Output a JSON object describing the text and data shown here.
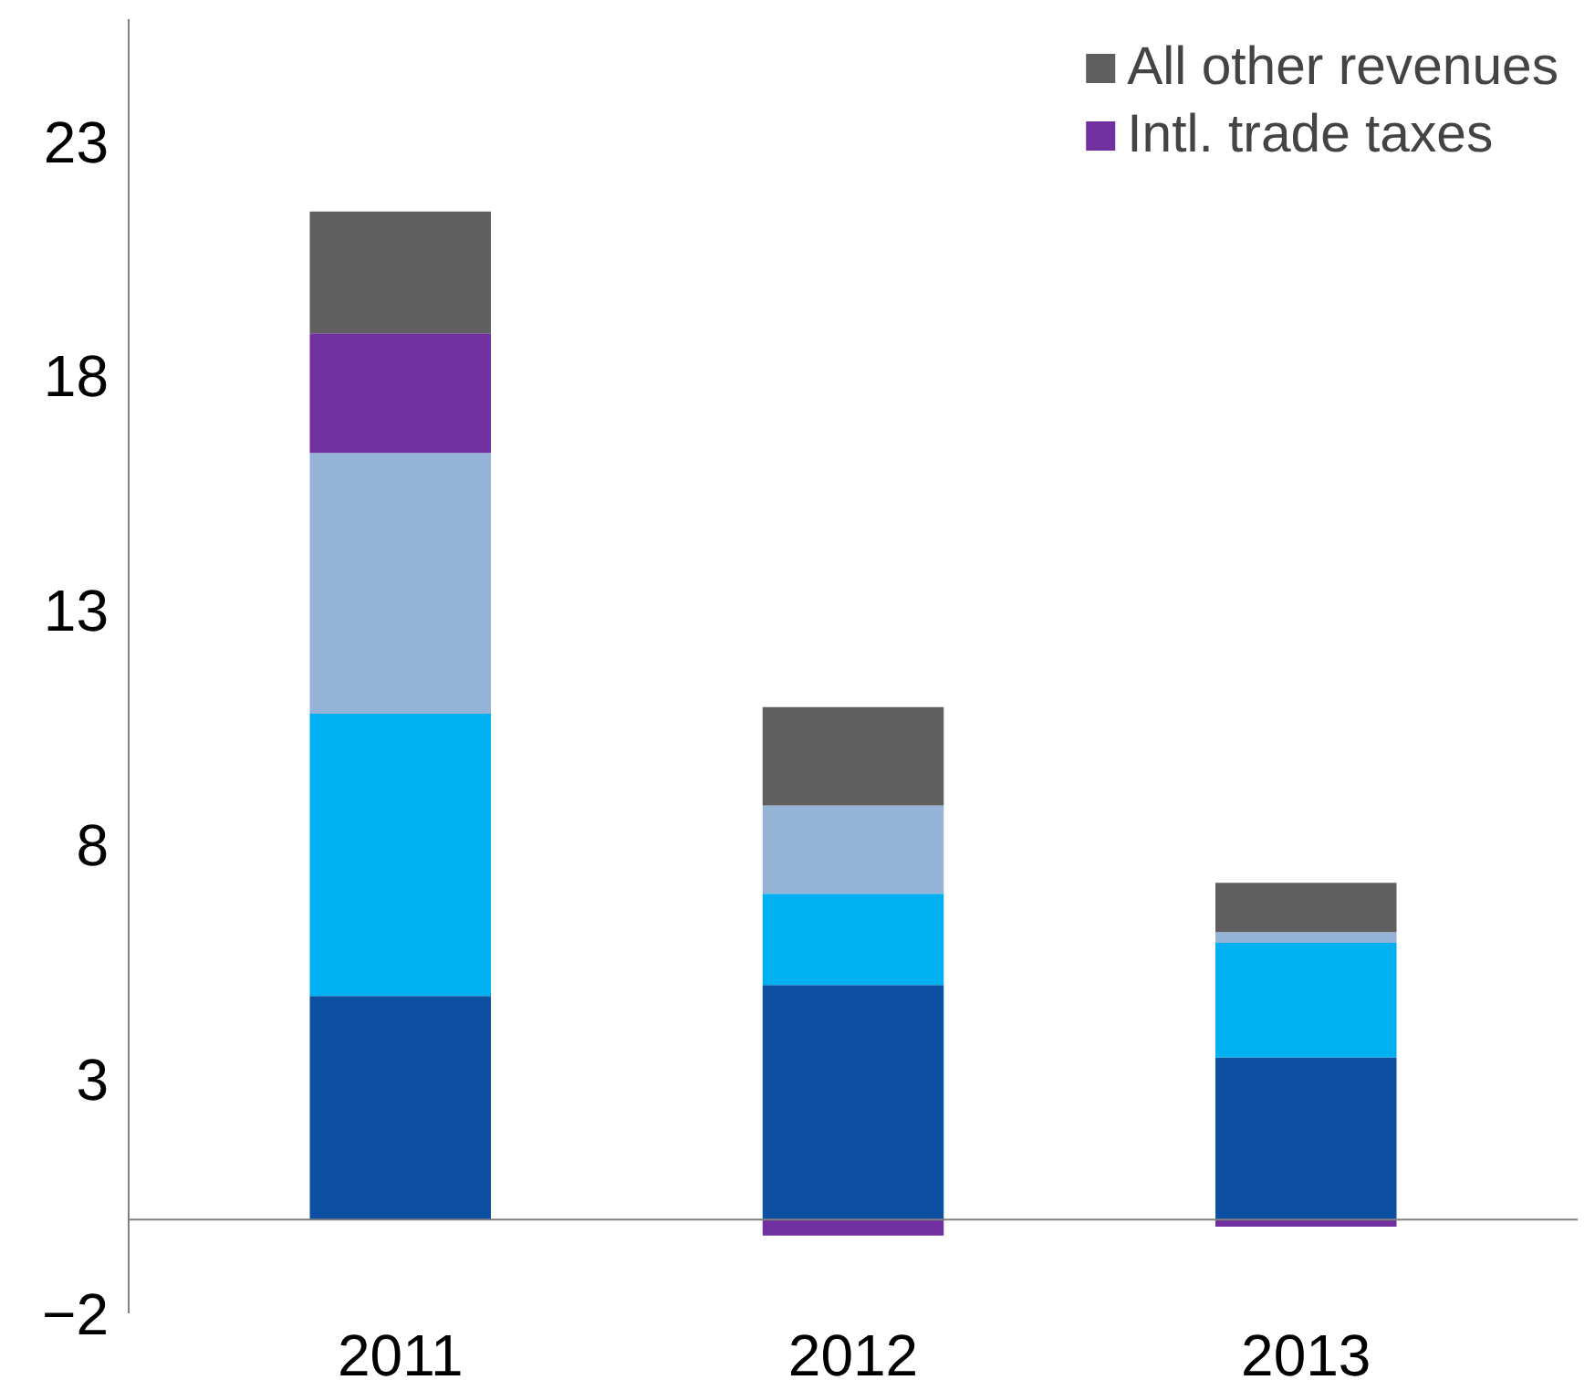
{
  "chart_data": {
    "type": "bar",
    "stacked": true,
    "categories": [
      "2011",
      "2012",
      "2013"
    ],
    "series": [
      {
        "color": "#0d4fa0",
        "values": [
          4.77,
          5.0,
          3.46
        ]
      },
      {
        "color": "#00b0f0",
        "values": [
          6.02,
          1.95,
          2.44
        ]
      },
      {
        "color": "#95b3d7",
        "values": [
          5.56,
          1.88,
          0.23
        ]
      },
      {
        "name": "Intl. trade taxes",
        "color": "#7030a0",
        "values": [
          2.55,
          -0.34,
          -0.15
        ]
      },
      {
        "name": "All other revenues",
        "color": "#5f5f5f",
        "values": [
          2.6,
          2.1,
          1.05
        ]
      }
    ],
    "ylim": [
      -2,
      25.6
    ],
    "yticks": [
      -2,
      3,
      8,
      13,
      18,
      23
    ],
    "grid": false,
    "legend": "top right"
  }
}
